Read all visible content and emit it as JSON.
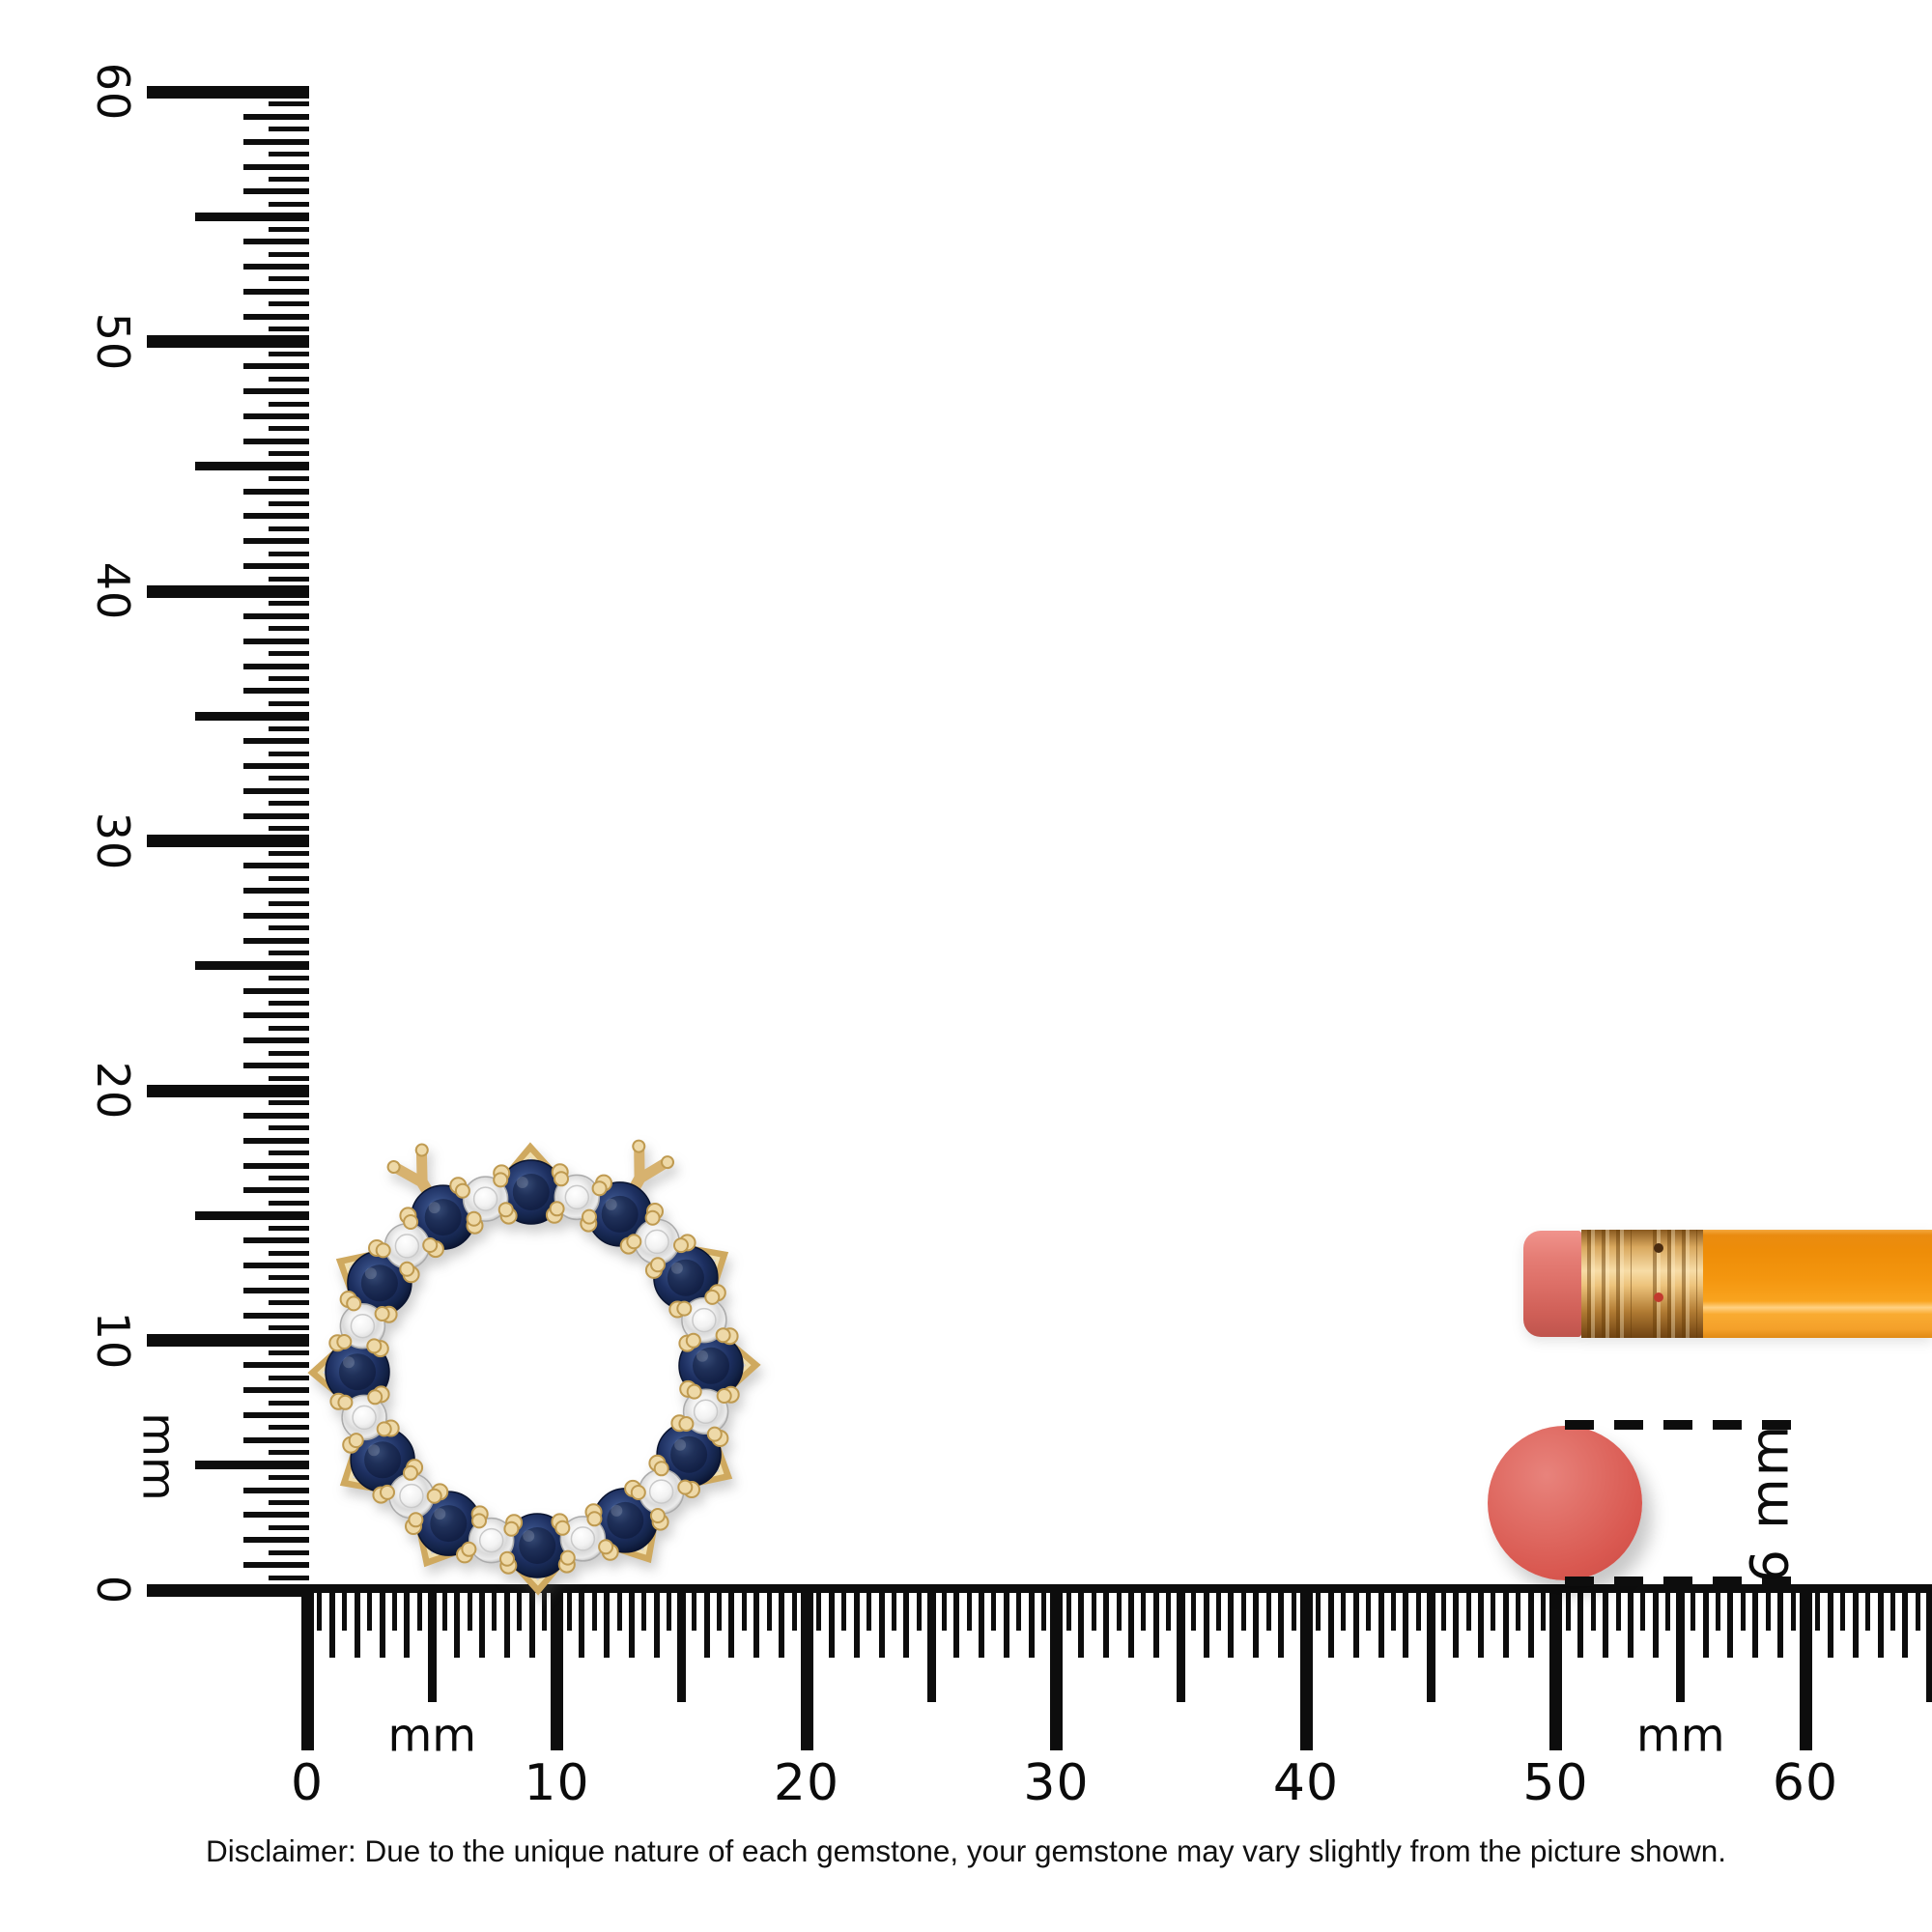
{
  "scene": {
    "background": "#ffffff",
    "disclaimer": "Disclaimer: Due to the unique nature of each gemstone, your gemstone may vary slightly from the picture shown."
  },
  "vertical_ruler": {
    "unit_label": "mm",
    "tick_labels": [
      "0",
      "10",
      "20",
      "30",
      "40",
      "50",
      "60"
    ],
    "range_mm": [
      0,
      60
    ],
    "tick_step_mm": 0.5,
    "tick_color": "#0d0d0d"
  },
  "horizontal_ruler": {
    "unit_label": "mm",
    "unit_label_positions_mm": [
      5,
      55
    ],
    "tick_labels": [
      "0",
      "10",
      "20",
      "30",
      "40",
      "50",
      "60"
    ],
    "range_mm": [
      0,
      65
    ],
    "labeled_range_mm": [
      0,
      60
    ],
    "tick_step_mm": 0.5,
    "tick_color": "#0d0d0d"
  },
  "dimension_callout": {
    "label": "6 mm"
  },
  "gem_dot": {
    "color": "#d95850"
  },
  "pendant": {
    "description": "open-circle pendant with alternating round blue sapphires and white diamonds in yellow gold",
    "sapphire_count": 12,
    "diamond_count": 12,
    "sapphire_angles_deg": [
      91,
      121,
      151,
      181,
      211,
      241,
      271,
      301,
      331,
      1,
      31,
      61
    ],
    "diamond_angles_deg": [
      106,
      136,
      166,
      196,
      226,
      256,
      286,
      316,
      346,
      16,
      46,
      76
    ],
    "bail_angles_deg": [
      61,
      121
    ],
    "chevron_angles_deg": [
      91,
      151,
      181,
      211,
      241,
      271,
      301,
      331,
      1,
      31
    ],
    "colors": {
      "gold": "#d7b26f",
      "gold_dark": "#bf9a50",
      "gold_light": "#f1e0b0",
      "bead_fill": "#eed9a8",
      "sapphire_light": "#5d7bb4",
      "sapphire_mid": "#1d2f60",
      "sapphire_dark": "#0a1330",
      "diamond_light": "#ffffff",
      "diamond_mid": "#dadada",
      "diamond_dark": "#bfbfbf"
    }
  },
  "pencil": {
    "parts": [
      "eraser",
      "ferrule",
      "body"
    ],
    "colors": {
      "eraser": "#dd6f67",
      "ferrule": "#d9a85e",
      "body": "#f79b1b",
      "body_highlight": "#ffd183"
    }
  }
}
